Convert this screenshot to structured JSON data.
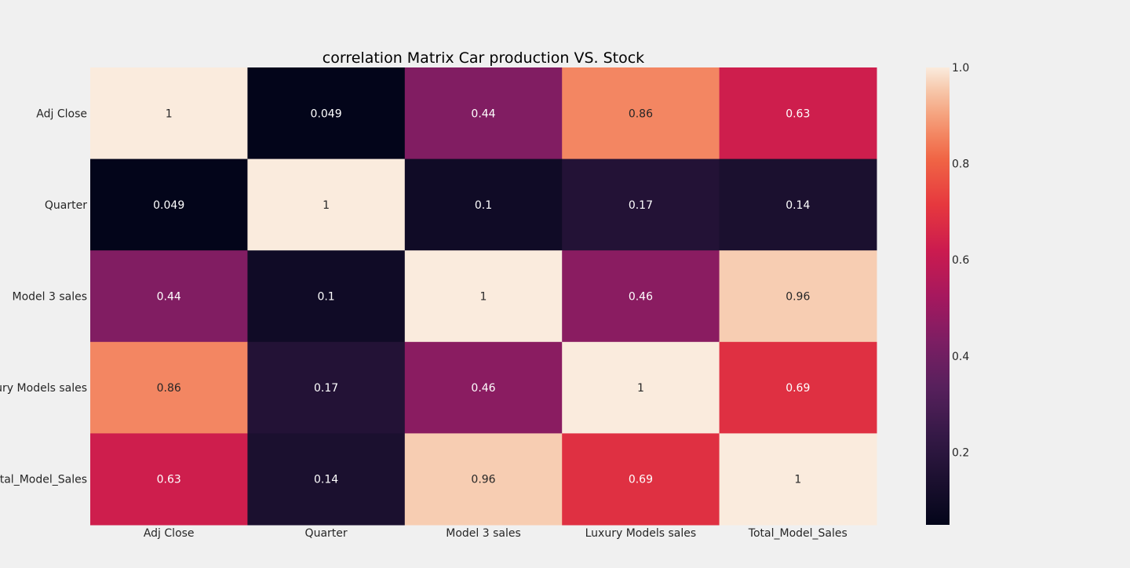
{
  "chart_data": {
    "type": "heatmap",
    "title": "correlation Matrix Car production VS. Stock",
    "row_labels": [
      "Adj Close",
      "Quarter",
      "Model 3 sales",
      "Luxury Models sales",
      "Total_Model_Sales"
    ],
    "col_labels": [
      "Adj Close",
      "Quarter",
      "Model 3 sales",
      "Luxury Models sales",
      "Total_Model_Sales"
    ],
    "values": [
      [
        1,
        0.049,
        0.44,
        0.86,
        0.63
      ],
      [
        0.049,
        1,
        0.1,
        0.17,
        0.14
      ],
      [
        0.44,
        0.1,
        1,
        0.46,
        0.96
      ],
      [
        0.86,
        0.17,
        0.46,
        1,
        0.69
      ],
      [
        0.63,
        0.14,
        0.96,
        0.69,
        1
      ]
    ],
    "annotations": [
      [
        "1",
        "0.049",
        "0.44",
        "0.86",
        "0.63"
      ],
      [
        "0.049",
        "1",
        "0.1",
        "0.17",
        "0.14"
      ],
      [
        "0.44",
        "0.1",
        "1",
        "0.46",
        "0.96"
      ],
      [
        "0.86",
        "0.17",
        "0.46",
        "1",
        "0.69"
      ],
      [
        "0.63",
        "0.14",
        "0.96",
        "0.69",
        "1"
      ]
    ],
    "colorbar": {
      "colormap": "rocket",
      "vmin": 0.049,
      "vmax": 1.0,
      "ticks": [
        0.2,
        0.4,
        0.6,
        0.8,
        1.0
      ],
      "tick_labels": [
        "0.2",
        "0.4",
        "0.6",
        "0.8",
        "1.0"
      ]
    },
    "grid": false,
    "legend": "colorbar-right"
  },
  "colors": {
    "background": "#f0f0f0",
    "text": "#262626"
  }
}
